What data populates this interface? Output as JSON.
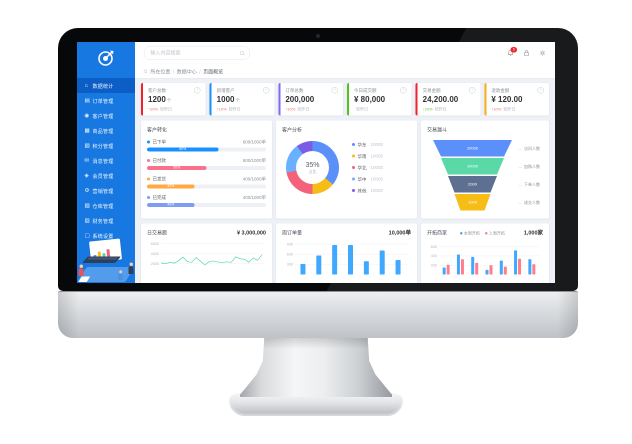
{
  "accent_colors": {
    "sidebar_bg": "#1778e2",
    "sidebar_active": "#0c5ec6",
    "content_bg": "#eef1f6"
  },
  "sidebar": {
    "items": [
      {
        "label": "数据统计",
        "icon": "home-icon",
        "active": true
      },
      {
        "label": "订单管理",
        "icon": "orders-icon",
        "active": false
      },
      {
        "label": "客户管理",
        "icon": "users-icon",
        "active": false
      },
      {
        "label": "商品管理",
        "icon": "goods-icon",
        "active": false
      },
      {
        "label": "积分管理",
        "icon": "points-icon",
        "active": false
      },
      {
        "label": "消息管理",
        "icon": "message-icon",
        "active": false
      },
      {
        "label": "会员管理",
        "icon": "member-icon",
        "active": false
      },
      {
        "label": "营销管理",
        "icon": "marketing-icon",
        "active": false
      },
      {
        "label": "仓库管理",
        "icon": "warehouse-icon",
        "active": false
      },
      {
        "label": "财务管理",
        "icon": "finance-icon",
        "active": false
      },
      {
        "label": "系统设置",
        "icon": "settings-icon",
        "active": false
      }
    ]
  },
  "header": {
    "search_placeholder": "输入内容搜索",
    "notification_count": "5"
  },
  "breadcrumb": {
    "segments": [
      "所在位置",
      "数据中心",
      "页面概览"
    ]
  },
  "kpi_cards": [
    {
      "label": "客户总数",
      "value": "1200",
      "unit": "个",
      "delta": "↑10%",
      "delta_color": "#f56c6c",
      "compare": "较昨日",
      "accent": "#f5222d"
    },
    {
      "label": "新增客户",
      "value": "1000",
      "unit": "个",
      "delta": "↑10%",
      "delta_color": "#f56c6c",
      "compare": "较昨日",
      "accent": "#1890ff"
    },
    {
      "label": "订单总数",
      "value": "200,000",
      "unit": "",
      "delta": "↑10%",
      "delta_color": "#f56c6c",
      "compare": "较昨日",
      "accent": "#8468f0"
    },
    {
      "label": "今日成交额",
      "value": "¥ 80,000",
      "unit": "",
      "delta": "",
      "delta_color": "#909399",
      "compare": "较昨日",
      "accent": "#52c41a"
    },
    {
      "label": "交易金额",
      "value": "24,200.00",
      "unit": "",
      "delta": "↓20%",
      "delta_color": "#67c23a",
      "compare": "较昨日",
      "accent": "#f5222d"
    },
    {
      "label": "退款金额",
      "value": "¥ 120.00",
      "unit": "",
      "delta": "↑10%",
      "delta_color": "#f56c6c",
      "compare": "较昨日",
      "accent": "#faad14"
    }
  ],
  "panels": {
    "conversion": {
      "title": "客户转化"
    },
    "analysis": {
      "title": "客户分析",
      "center_value": "35%",
      "center_label": "占比"
    },
    "funnel": {
      "title": "交易漏斗"
    },
    "daily": {
      "title": "日交易额",
      "total": "¥ 3,000,000"
    },
    "weekly": {
      "title": "周订单量",
      "total": "10,000单"
    },
    "merchants": {
      "title": "开拓商家",
      "total": "1,000家"
    }
  },
  "chart_data": [
    {
      "id": "conversion",
      "type": "bar",
      "variant": "progress",
      "rows": [
        {
          "label": "已下单",
          "value_text": "600/1000单",
          "percent": 60,
          "percent_text": "60%",
          "color": "#1890ff"
        },
        {
          "label": "已付款",
          "value_text": "500/1000单",
          "percent": 50,
          "percent_text": "50%",
          "color": "#f8728c"
        },
        {
          "label": "已发货",
          "value_text": "400/1000单",
          "percent": 40,
          "percent_text": "40%",
          "color": "#ffa940"
        },
        {
          "label": "已完成",
          "value_text": "400/1000单",
          "percent": 40,
          "percent_text": "40%",
          "color": "#7f9cf5"
        }
      ]
    },
    {
      "id": "analysis",
      "type": "pie",
      "title": "客户分析",
      "center_text": "35%",
      "center_sub": "占比",
      "slices": [
        {
          "label": "华东",
          "value": "10000",
          "percent": 36,
          "color": "#5B8FF9"
        },
        {
          "label": "华南",
          "value": "10000",
          "percent": 14,
          "color": "#F6BD16"
        },
        {
          "label": "华北",
          "value": "10000",
          "percent": 22,
          "color": "#F2637B"
        },
        {
          "label": "华中",
          "value": "10000",
          "percent": 18,
          "color": "#69B1FF"
        },
        {
          "label": "其他",
          "value": "10000",
          "percent": 10,
          "color": "#7B5CE5"
        }
      ]
    },
    {
      "id": "funnel",
      "type": "funnel",
      "title": "交易漏斗",
      "layers": [
        {
          "label": "访问人数",
          "value": "20000",
          "color": "#5B8FF9"
        },
        {
          "label": "加购人数",
          "value": "10000",
          "color": "#5AD8A6"
        },
        {
          "label": "下单人数",
          "value": "2000",
          "color": "#5D7092"
        },
        {
          "label": "成交人数",
          "value": "1000",
          "color": "#F6BD16"
        }
      ]
    },
    {
      "id": "daily",
      "type": "line",
      "title": "日交易额",
      "color": "#5ad8a6",
      "ylim": [
        0,
        6000
      ],
      "yticks": [
        2000,
        4000,
        6000
      ],
      "values": [
        2200,
        2050,
        2300,
        2150,
        2600,
        3300,
        2450,
        2300,
        3250,
        2500,
        1800,
        2450,
        2550,
        2350,
        2250,
        2400,
        2300,
        3400,
        3000,
        2900,
        2300,
        3150,
        2700,
        3800
      ]
    },
    {
      "id": "weekly",
      "type": "bar",
      "title": "周订单量",
      "color": "#40a9ff",
      "ylim": [
        0,
        900
      ],
      "yticks": [
        300,
        600,
        900
      ],
      "values": [
        310,
        560,
        870,
        870,
        390,
        710,
        430
      ]
    },
    {
      "id": "merchants",
      "type": "grouped-bar",
      "title": "开拓商家",
      "ylim": [
        0,
        600
      ],
      "yticks": [
        200,
        400,
        600
      ],
      "series": [
        {
          "name": "本周开拓",
          "color": "#40a9ff",
          "values": [
            150,
            430,
            380,
            100,
            300,
            520,
            330
          ]
        },
        {
          "name": "上周开拓",
          "color": "#ff7e8b",
          "values": [
            210,
            330,
            250,
            200,
            170,
            340,
            220
          ]
        }
      ]
    }
  ]
}
